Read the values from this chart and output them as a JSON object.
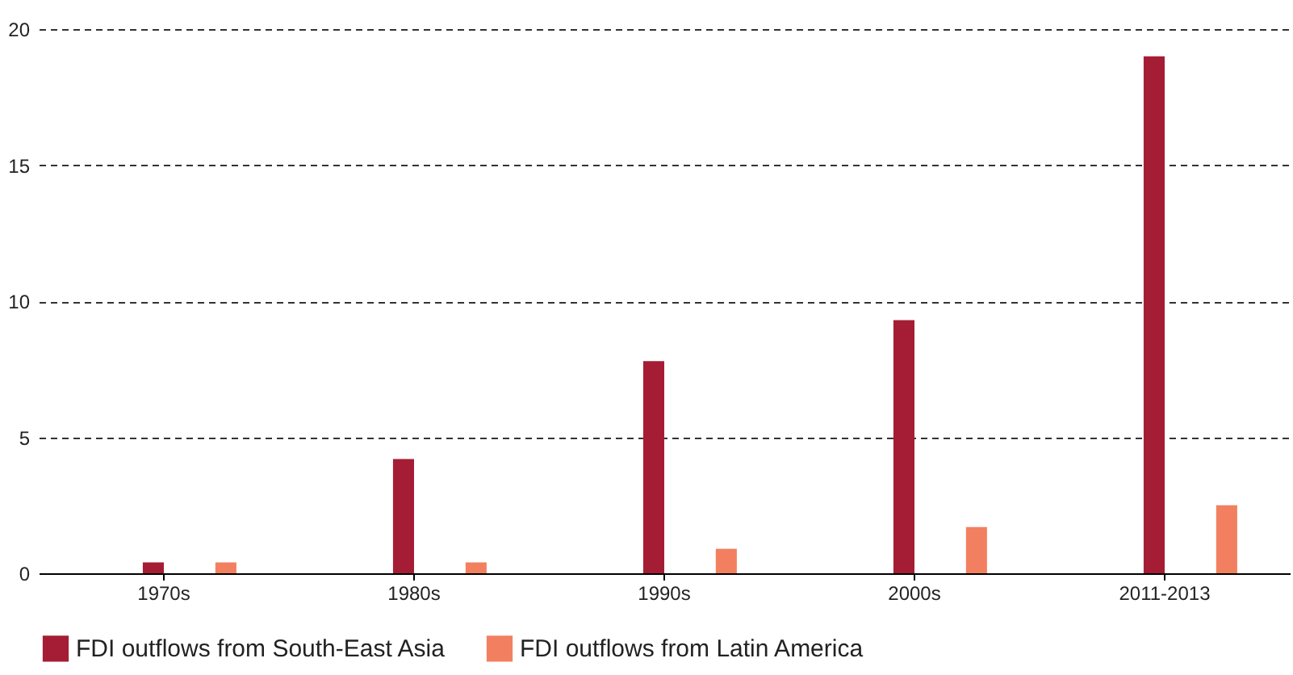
{
  "chart_data": {
    "type": "bar",
    "categories": [
      "1970s",
      "1980s",
      "1990s",
      "2000s",
      "2011-2013"
    ],
    "series": [
      {
        "name": "FDI outflows from South-East Asia",
        "color": "#a51d35",
        "values": [
          0.4,
          4.2,
          7.8,
          9.3,
          19.0
        ]
      },
      {
        "name": "FDI outflows from Latin America",
        "color": "#f28060",
        "values": [
          0.4,
          0.4,
          0.9,
          1.7,
          2.5
        ]
      }
    ],
    "ylim": [
      0,
      20
    ],
    "yticks": [
      0,
      5,
      10,
      15,
      20
    ],
    "grid": "y",
    "legend": "bottom"
  }
}
